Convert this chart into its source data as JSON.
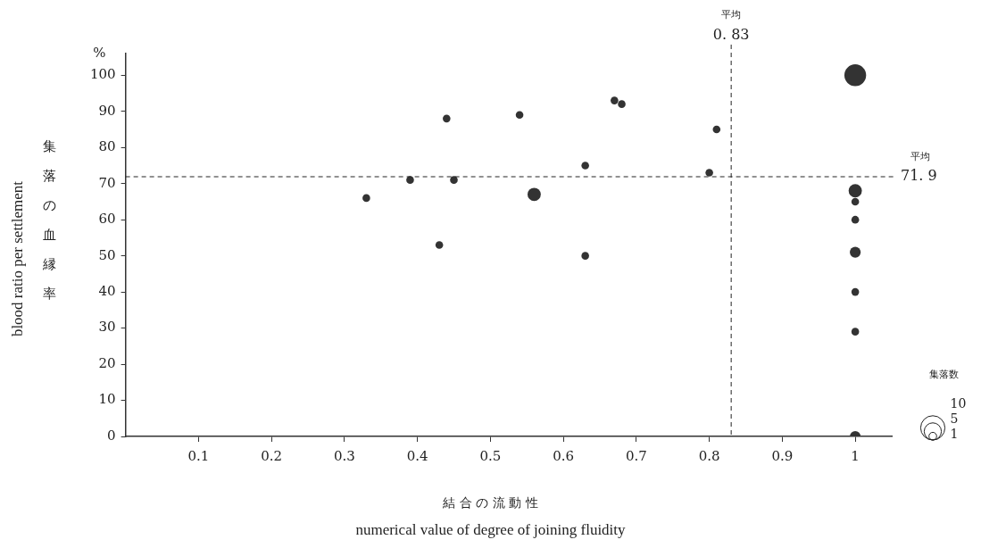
{
  "chart_data": {
    "type": "bubble",
    "xlabel": "結 合 の 流 動 性\nnumerical value of degree of joining fluidity",
    "ylabel": "blood ratio per settlement\n集落の血縁率",
    "legend_title": "集落数",
    "annotations": [
      "%"
    ],
    "x": [
      0.33,
      0.39,
      0.44,
      0.43,
      0.45,
      0.54,
      0.56,
      0.63,
      0.63,
      0.67,
      0.68,
      0.81,
      0.8,
      1.0,
      1.0,
      1.0,
      1.0,
      1.0,
      1.0,
      1.0,
      1.0
    ],
    "series": [
      {
        "color": "#333333",
        "values": [
          66,
          71,
          88,
          53,
          71,
          89,
          67,
          75,
          50,
          93,
          92,
          85,
          73,
          100,
          68,
          65,
          60,
          51,
          40,
          29,
          0
        ],
        "sizes": [
          1,
          1,
          1,
          1,
          1,
          1,
          3,
          1,
          1,
          1,
          1,
          1,
          1,
          8,
          3,
          1,
          1,
          2,
          1,
          1,
          2
        ]
      }
    ],
    "size_legend": [
      10,
      5,
      1
    ],
    "xlim": [
      0,
      1.05
    ],
    "xticks": [
      0.1,
      0.2,
      0.3,
      0.4,
      0.5,
      0.6,
      0.7,
      0.8,
      0.9,
      1.0
    ],
    "ylim": [
      0,
      106
    ],
    "yticks": [
      0,
      10,
      20,
      30,
      40,
      50,
      60,
      70,
      80,
      90,
      100
    ],
    "ref_lines": [
      {
        "axis": "x",
        "value": 0.83,
        "label": "平均\n0. 83",
        "line_style": "dashed"
      },
      {
        "axis": "y",
        "value": 71.9,
        "label": "平均\n71. 9",
        "line_style": "dashed"
      }
    ],
    "grid": false
  }
}
